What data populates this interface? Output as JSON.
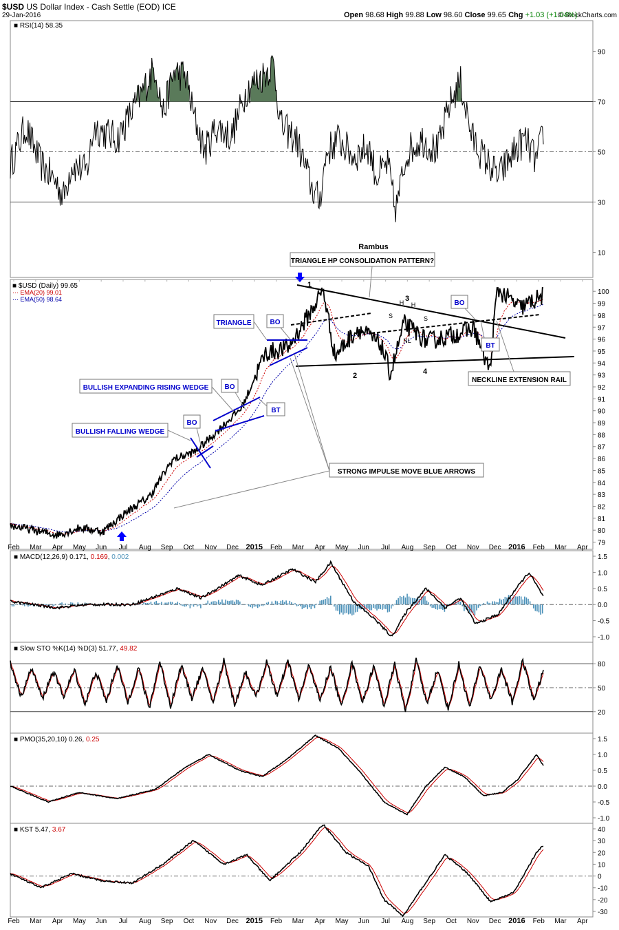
{
  "header": {
    "symbol": "$USD",
    "name": "US Dollar Index - Cash Settle (EOD)",
    "exchange": "ICE",
    "date": "29-Jan-2016",
    "brand": "© StockCharts.com",
    "ohlc": [
      {
        "label": "Open",
        "value": "98.68"
      },
      {
        "label": "High",
        "value": "99.88"
      },
      {
        "label": "Low",
        "value": "98.60"
      },
      {
        "label": "Close",
        "value": "99.65"
      },
      {
        "label": "Chg",
        "value": "+1.03 (+1.04%)",
        "color": "#008000"
      }
    ]
  },
  "rsi": {
    "label": "RSI(14) 58.35",
    "ticks": [
      90,
      70,
      50,
      30,
      10
    ],
    "overbought": 70,
    "oversold": 30,
    "mid": 50,
    "shade_color": "#5a7a5a"
  },
  "price": {
    "legend": [
      {
        "text": "$USD (Daily) 99.65",
        "color": "#000000"
      },
      {
        "text": "EMA(20) 99.01",
        "color": "#cc0000"
      },
      {
        "text": "EMA(50) 98.64",
        "color": "#0000aa"
      }
    ],
    "author": "Rambus",
    "ticks": [
      100,
      99,
      98,
      97,
      96,
      95,
      94,
      93,
      92,
      91,
      90,
      89,
      88,
      87,
      86,
      85,
      84,
      83,
      82,
      81,
      80,
      79
    ]
  },
  "annotations": {
    "triangle_hp": "TRIANGLE HP CONSOLIDATION PATTERN?",
    "triangle": "TRIANGLE",
    "bullish_expanding": "BULLISH EXPANDING RISING WEDGE",
    "bullish_falling": "BULLISH FALLING WEDGE",
    "strong_impulse": "STRONG IMPULSE MOVE BLUE ARROWS",
    "neckline_ext": "NECKLINE EXTENSION RAIL",
    "bo": "BO",
    "bt": "BT",
    "nl": "NL",
    "s": "S",
    "h": "H",
    "wave1": "1",
    "wave2": "2",
    "wave3": "3",
    "wave4": "4"
  },
  "months": [
    "Feb",
    "Mar",
    "Apr",
    "May",
    "Jun",
    "Jul",
    "Aug",
    "Sep",
    "Oct",
    "Nov",
    "Dec",
    "2015",
    "Feb",
    "Mar",
    "Apr",
    "May",
    "Jun",
    "Jul",
    "Aug",
    "Sep",
    "Oct",
    "Nov",
    "Dec",
    "2016",
    "Feb",
    "Mar",
    "Apr"
  ],
  "macd": {
    "label": "MACD(12,26,9)",
    "v1": "0.171",
    "v2": "0.169",
    "v3": "0.002",
    "ticks": [
      "1.5",
      "1.0",
      "0.5",
      "0.0",
      "-0.5",
      "-1.0"
    ]
  },
  "sto": {
    "label": "Slow STO %K(14) %D(3) 51.77,",
    "v2": "49.82",
    "ticks": [
      80,
      50,
      20
    ]
  },
  "pmo": {
    "label": "PMO(35,20,10) 0.26,",
    "v2": "0.25",
    "ticks": [
      "1.5",
      "1.0",
      "0.5",
      "0.0",
      "-0.5",
      "-1.0"
    ]
  },
  "kst": {
    "label": "KST 5.47,",
    "v2": "3.67",
    "ticks": [
      40,
      30,
      20,
      10,
      0,
      -10,
      -20,
      -30
    ]
  },
  "chart_data": {
    "type": "line",
    "title": "$USD US Dollar Index - Cash Settle (EOD) ICE",
    "x_range": [
      "2014-02",
      "2016-01-29"
    ],
    "price_series": {
      "name": "$USD (Daily)",
      "approx_monthly_close": [
        {
          "x": "2014-02",
          "y": 80.4
        },
        {
          "x": "2014-03",
          "y": 80.0
        },
        {
          "x": "2014-04",
          "y": 79.6
        },
        {
          "x": "2014-05",
          "y": 80.2
        },
        {
          "x": "2014-06",
          "y": 79.9
        },
        {
          "x": "2014-07",
          "y": 81.5
        },
        {
          "x": "2014-08",
          "y": 82.8
        },
        {
          "x": "2014-09",
          "y": 85.9
        },
        {
          "x": "2014-10",
          "y": 86.6
        },
        {
          "x": "2014-11",
          "y": 88.4
        },
        {
          "x": "2014-12",
          "y": 90.3
        },
        {
          "x": "2015-01",
          "y": 94.8
        },
        {
          "x": "2015-02",
          "y": 95.3
        },
        {
          "x": "2015-03",
          "y": 98.4
        },
        {
          "x": "2015-04",
          "y": 94.6
        },
        {
          "x": "2015-05",
          "y": 96.9
        },
        {
          "x": "2015-06",
          "y": 95.5
        },
        {
          "x": "2015-07",
          "y": 97.3
        },
        {
          "x": "2015-08",
          "y": 95.8
        },
        {
          "x": "2015-09",
          "y": 96.3
        },
        {
          "x": "2015-10",
          "y": 96.9
        },
        {
          "x": "2015-11",
          "y": 100.2
        },
        {
          "x": "2015-12",
          "y": 98.6
        },
        {
          "x": "2016-01",
          "y": 99.65
        }
      ]
    },
    "indicators": {
      "EMA(20)": 99.01,
      "EMA(50)": 98.64,
      "RSI(14)": 58.35,
      "MACD(12,26,9)": [
        0.171,
        0.169,
        0.002
      ],
      "Slow STO %K(14) %D(3)": [
        51.77,
        49.82
      ],
      "PMO(35,20,10)": [
        0.26,
        0.25
      ],
      "KST": [
        5.47,
        3.67
      ]
    },
    "y_ranges": {
      "price": [
        79,
        100
      ],
      "rsi": [
        0,
        100
      ],
      "macd": [
        -1.0,
        1.5
      ],
      "sto": [
        0,
        100
      ],
      "pmo": [
        -1.0,
        1.5
      ],
      "kst": [
        -30,
        40
      ]
    }
  }
}
